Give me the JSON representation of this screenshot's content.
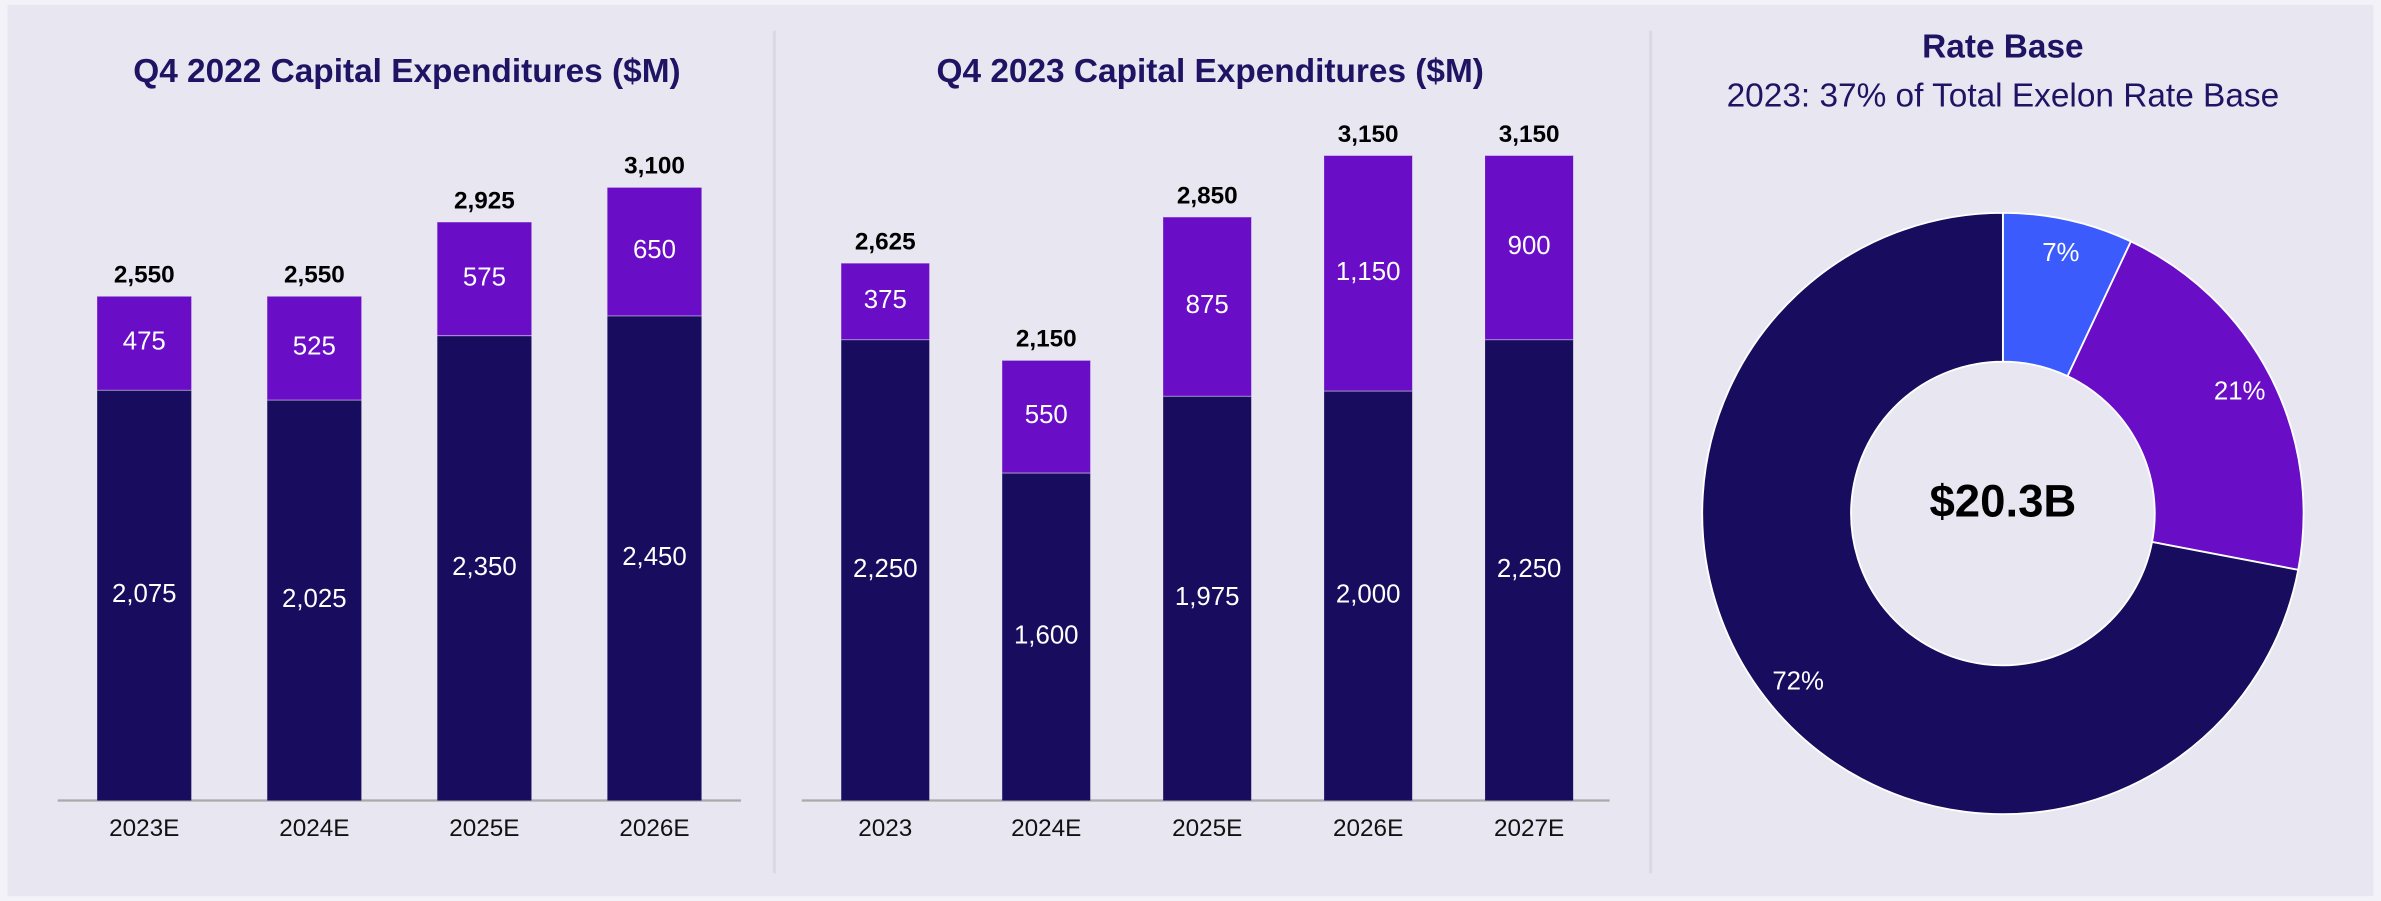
{
  "chart_data": [
    {
      "type": "bar",
      "stacked": true,
      "title": "Q4 2022 Capital Expenditures ($M)",
      "categories": [
        "2023E",
        "2024E",
        "2025E",
        "2026E"
      ],
      "series": [
        {
          "color": "#170c5e",
          "values": [
            2075,
            2025,
            2350,
            2450
          ],
          "value_labels": [
            "2,075",
            "2,025",
            "2,350",
            "2,450"
          ]
        },
        {
          "color": "#6a0dc6",
          "values": [
            475,
            525,
            575,
            650
          ],
          "value_labels": [
            "475",
            "525",
            "575",
            "650"
          ]
        }
      ],
      "totals": [
        2550,
        2550,
        2925,
        3100
      ],
      "total_labels": [
        "2,550",
        "2,550",
        "2,925",
        "3,100"
      ]
    },
    {
      "type": "bar",
      "stacked": true,
      "title": "Q4 2023 Capital Expenditures ($M)",
      "categories": [
        "2023",
        "2024E",
        "2025E",
        "2026E",
        "2027E"
      ],
      "series": [
        {
          "color": "#170c5e",
          "values": [
            2250,
            1600,
            1975,
            2000,
            2250
          ],
          "value_labels": [
            "2,250",
            "1,600",
            "1,975",
            "2,000",
            "2,250"
          ]
        },
        {
          "color": "#6a0dc6",
          "values": [
            375,
            550,
            875,
            1150,
            900
          ],
          "value_labels": [
            "375",
            "550",
            "875",
            "1,150",
            "900"
          ]
        }
      ],
      "totals": [
        2625,
        2150,
        2850,
        3150,
        3150
      ],
      "total_labels": [
        "2,625",
        "2,150",
        "2,850",
        "3,150",
        "3,150"
      ]
    },
    {
      "type": "pie",
      "donut": true,
      "title": "Rate Base",
      "subtitle": "2023: 37% of Total Exelon Rate Base",
      "center_label": "$20.3B",
      "values": [
        7,
        21,
        72
      ],
      "value_labels": [
        "7%",
        "21%",
        "72%"
      ],
      "colors": [
        "#3b5bfd",
        "#6a0dc6",
        "#170c5e"
      ]
    }
  ]
}
